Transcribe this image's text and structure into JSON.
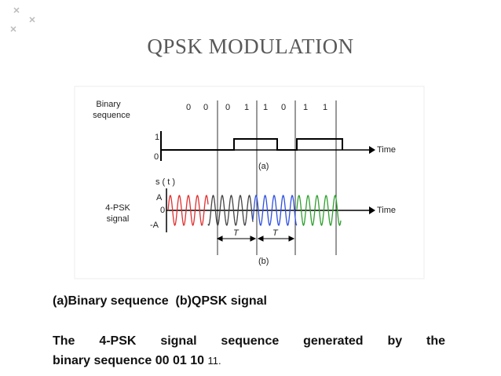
{
  "title": "QPSK MODULATION",
  "figure": {
    "binary_label": [
      "Binary",
      "sequence"
    ],
    "bits": [
      "0",
      "0",
      "0",
      "1",
      "1",
      "0",
      "1",
      "1"
    ],
    "panel_a": {
      "level_high": "1",
      "level_low": "0",
      "axis_label": "Time",
      "caption": "(a)"
    },
    "panel_b": {
      "signal_label": [
        "4-PSK",
        "signal"
      ],
      "y_label": "s ( t )",
      "amp_pos": "A",
      "zero": "0",
      "amp_neg": "-A",
      "axis_label": "Time",
      "period_labels": [
        "T",
        "T"
      ],
      "caption": "(b)"
    }
  },
  "caption": "(a)Binary sequence  (b)QPSK signal",
  "body": {
    "line1": "The 4-PSK signal sequence generated by the",
    "line2": "binary sequence 00 01 10",
    "suffix": "11."
  }
}
